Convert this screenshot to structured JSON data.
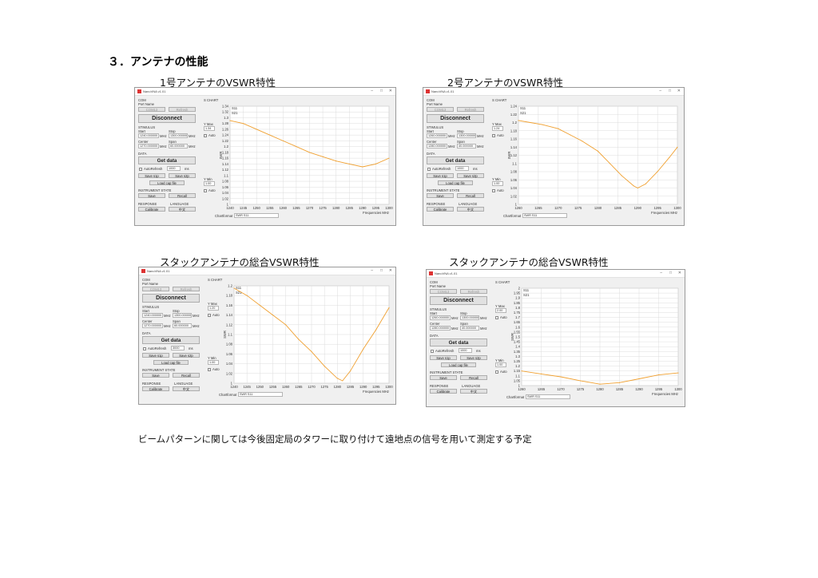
{
  "heading": "３．アンテナの性能",
  "note": "ビームパターンに関しては今後固定局のタワーに取り付けて遠地点の信号を用いて測定する予定",
  "colors": {
    "trace": "#f0a030",
    "grid": "#dcdcdc"
  },
  "panels": [
    {
      "title": "1号アンテナのVSWR特性"
    },
    {
      "title": "2号アンテナのVSWR特性"
    },
    {
      "title": "スタックアンテナの総合VSWR特性"
    },
    {
      "title": "スタックアンテナの総合VSWR特性"
    }
  ],
  "app": {
    "window_title": "NanoVNA v1.01",
    "com_label": "COM",
    "port_name_label": "Port Name",
    "com_port": "COM13",
    "refresh": "Refresh",
    "disconnect": "Disconnect",
    "stimulus_label": "STIMULUS",
    "start_label": "Start",
    "stop_label": "Stop",
    "center_label": "Center",
    "span_label": "Span",
    "unit_mhz": "MHz",
    "data_label": "DATA",
    "get_data": "Get data",
    "autorefresh": "AutoRefresh",
    "ms": "ms",
    "save_s1p": "Save s1p",
    "save_s2p": "Save s2p",
    "load_cap": "Load cap file",
    "instrument_state": "INSTRUMENT STATE",
    "save": "Save",
    "recall": "Recall",
    "response": "RESPONSE",
    "language": "LANGUAGE",
    "calibrate": "Calibrate",
    "lang_value": "中文",
    "chart_header": "S CHART",
    "ymax_label": "Y Max",
    "ymin_label": "Y Min",
    "auto_label": "Auto",
    "chart_format_label": "Chartformat",
    "chart_format_value": "SWR S11",
    "axis_ylabel": "SWR",
    "axis_xlabel": "Frequencies MHz"
  },
  "params": [
    {
      "start": "1240.000000",
      "stop": "1300.000000",
      "center": "1270.000000",
      "span": "60.000000",
      "refresh_ms": "1000",
      "ymax": "1.34",
      "ymin": "1.00",
      "s11": "S11",
      "s21": "S21"
    },
    {
      "start": "1260.000000",
      "stop": "1300.000000",
      "center": "1280.000000",
      "span": "40.000000",
      "refresh_ms": "1000",
      "ymax": "1.24",
      "ymin": "1.00",
      "s11": "S11",
      "s21": "S21"
    },
    {
      "start": "1240.000000",
      "stop": "1300.000000",
      "center": "1270.000000",
      "span": "60.000000",
      "refresh_ms": "3000",
      "ymax": "1.20",
      "ymin": "1.00",
      "s11": "S11",
      "s21": "S21"
    },
    {
      "start": "1260.000000",
      "stop": "1300.000000",
      "center": "1280.000000",
      "span": "40.000000",
      "refresh_ms": "1000",
      "ymax": "2.00",
      "ymin": "1.00",
      "s11": "S11",
      "s21": "S21"
    }
  ],
  "chart_data": [
    {
      "type": "line",
      "title": "1号アンテナのVSWR特性",
      "xlabel": "Frequencies MHz",
      "ylabel": "SWR",
      "xlim": [
        1240,
        1300
      ],
      "ylim": [
        1.0,
        1.34
      ],
      "grid": true,
      "x_ticks": [
        "1240",
        "1245",
        "1250",
        "1255",
        "1260",
        "1265",
        "1270",
        "1275",
        "1280",
        "1285",
        "1290",
        "1295",
        "1300"
      ],
      "y_ticks": [
        "1",
        "1.02",
        "1.04",
        "1.06",
        "1.08",
        "1.1",
        "1.12",
        "1.14",
        "1.16",
        "1.18",
        "1.2",
        "1.22",
        "1.24",
        "1.26",
        "1.28",
        "1.3",
        "1.32",
        "1.34"
      ],
      "series": [
        {
          "x": [
            1240,
            1245,
            1250,
            1255,
            1260,
            1265,
            1270,
            1275,
            1280,
            1285,
            1290,
            1295,
            1300
          ],
          "y": [
            1.29,
            1.28,
            1.26,
            1.24,
            1.22,
            1.2,
            1.18,
            1.165,
            1.15,
            1.14,
            1.13,
            1.14,
            1.16
          ]
        }
      ]
    },
    {
      "type": "line",
      "title": "2号アンテナのVSWR特性",
      "xlabel": "Frequencies MHz",
      "ylabel": "SWR",
      "xlim": [
        1260,
        1300
      ],
      "ylim": [
        1.0,
        1.24
      ],
      "grid": true,
      "x_ticks": [
        "1260",
        "1265",
        "1270",
        "1275",
        "1280",
        "1285",
        "1290",
        "1295",
        "1300"
      ],
      "y_ticks": [
        "1",
        "1.02",
        "1.04",
        "1.06",
        "1.08",
        "1.1",
        "1.12",
        "1.14",
        "1.16",
        "1.18",
        "1.2",
        "1.22",
        "1.24"
      ],
      "series": [
        {
          "x": [
            1260,
            1263,
            1266,
            1270,
            1273,
            1276,
            1280,
            1283,
            1286,
            1289,
            1290,
            1292,
            1295,
            1298,
            1300
          ],
          "y": [
            1.205,
            1.2,
            1.195,
            1.185,
            1.17,
            1.155,
            1.13,
            1.1,
            1.07,
            1.045,
            1.04,
            1.05,
            1.08,
            1.115,
            1.14
          ]
        }
      ]
    },
    {
      "type": "line",
      "title": "スタックアンテナの総合VSWR特性",
      "xlabel": "Frequencies MHz",
      "ylabel": "SWR",
      "xlim": [
        1240,
        1300
      ],
      "ylim": [
        1.0,
        1.2
      ],
      "grid": true,
      "x_ticks": [
        "1240",
        "1245",
        "1250",
        "1255",
        "1260",
        "1265",
        "1270",
        "1275",
        "1280",
        "1285",
        "1290",
        "1295",
        "1300"
      ],
      "y_ticks": [
        "1",
        "1.02",
        "1.04",
        "1.06",
        "1.08",
        "1.1",
        "1.12",
        "1.14",
        "1.16",
        "1.18",
        "1.2"
      ],
      "series": [
        {
          "x": [
            1240,
            1245,
            1250,
            1255,
            1260,
            1265,
            1270,
            1275,
            1280,
            1282,
            1285,
            1290,
            1295,
            1300
          ],
          "y": [
            1.195,
            1.18,
            1.16,
            1.14,
            1.12,
            1.09,
            1.065,
            1.035,
            1.01,
            1.005,
            1.025,
            1.07,
            1.11,
            1.155
          ]
        }
      ]
    },
    {
      "type": "line",
      "title": "スタックアンテナの総合VSWR特性",
      "xlabel": "Frequencies MHz",
      "ylabel": "SWR",
      "xlim": [
        1260,
        1300
      ],
      "ylim": [
        1.0,
        2.0
      ],
      "grid": true,
      "x_ticks": [
        "1260",
        "1265",
        "1270",
        "1275",
        "1280",
        "1285",
        "1290",
        "1295",
        "1300"
      ],
      "y_ticks": [
        "1",
        "1.05",
        "1.1",
        "1.15",
        "1.2",
        "1.25",
        "1.3",
        "1.35",
        "1.4",
        "1.45",
        "1.5",
        "1.55",
        "1.6",
        "1.65",
        "1.7",
        "1.75",
        "1.8",
        "1.85",
        "1.9",
        "1.95",
        "2"
      ],
      "series": [
        {
          "x": [
            1260,
            1265,
            1270,
            1275,
            1280,
            1285,
            1290,
            1295,
            1300
          ],
          "y": [
            1.15,
            1.12,
            1.09,
            1.05,
            1.015,
            1.03,
            1.07,
            1.11,
            1.13
          ]
        }
      ]
    }
  ]
}
